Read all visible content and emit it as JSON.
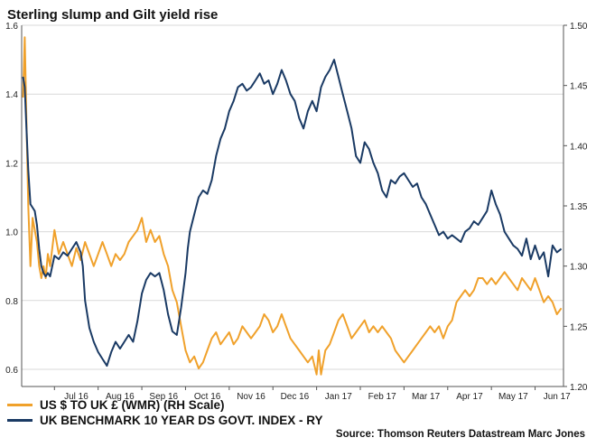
{
  "chart_data": {
    "type": "line",
    "title": "Sterling slump and Gilt yield rise",
    "x_ticks": [
      "Jul 16",
      "Aug 16",
      "Sep 16",
      "Oct 16",
      "Nov 16",
      "Dec 16",
      "Jan 17",
      "Feb 17",
      "Mar 17",
      "Apr 17",
      "May 17",
      "Jun 17"
    ],
    "y_left": {
      "ticks": [
        "0.6",
        "0.8",
        "1.0",
        "1.2",
        "1.4",
        "1.6"
      ],
      "range": [
        0.55,
        1.6
      ]
    },
    "y_right": {
      "ticks": [
        "1.20",
        "1.25",
        "1.30",
        "1.35",
        "1.40",
        "1.45",
        "1.50"
      ],
      "range": [
        1.2,
        1.5
      ]
    },
    "x_range_months": [
      -0.75,
      11.65
    ],
    "series": [
      {
        "name": "US $ TO UK £ (WMR) (RH Scale)",
        "axis": "right",
        "color": "#f0a12b",
        "points": [
          [
            -0.72,
            1.44
          ],
          [
            -0.68,
            1.49
          ],
          [
            -0.64,
            1.42
          ],
          [
            -0.6,
            1.35
          ],
          [
            -0.55,
            1.3
          ],
          [
            -0.5,
            1.34
          ],
          [
            -0.45,
            1.33
          ],
          [
            -0.4,
            1.32
          ],
          [
            -0.35,
            1.3
          ],
          [
            -0.3,
            1.29
          ],
          [
            -0.25,
            1.3
          ],
          [
            -0.2,
            1.29
          ],
          [
            -0.15,
            1.31
          ],
          [
            -0.1,
            1.3
          ],
          [
            0,
            1.33
          ],
          [
            0.1,
            1.31
          ],
          [
            0.2,
            1.32
          ],
          [
            0.3,
            1.31
          ],
          [
            0.4,
            1.3
          ],
          [
            0.5,
            1.315
          ],
          [
            0.6,
            1.305
          ],
          [
            0.7,
            1.32
          ],
          [
            0.8,
            1.31
          ],
          [
            0.9,
            1.3
          ],
          [
            1.0,
            1.31
          ],
          [
            1.1,
            1.32
          ],
          [
            1.2,
            1.31
          ],
          [
            1.3,
            1.3
          ],
          [
            1.4,
            1.31
          ],
          [
            1.5,
            1.305
          ],
          [
            1.6,
            1.31
          ],
          [
            1.7,
            1.32
          ],
          [
            1.8,
            1.325
          ],
          [
            1.9,
            1.33
          ],
          [
            2.0,
            1.34
          ],
          [
            2.1,
            1.32
          ],
          [
            2.2,
            1.33
          ],
          [
            2.3,
            1.32
          ],
          [
            2.4,
            1.325
          ],
          [
            2.5,
            1.31
          ],
          [
            2.6,
            1.3
          ],
          [
            2.7,
            1.28
          ],
          [
            2.8,
            1.27
          ],
          [
            2.9,
            1.25
          ],
          [
            3.0,
            1.23
          ],
          [
            3.1,
            1.22
          ],
          [
            3.2,
            1.225
          ],
          [
            3.3,
            1.215
          ],
          [
            3.4,
            1.22
          ],
          [
            3.5,
            1.23
          ],
          [
            3.6,
            1.24
          ],
          [
            3.7,
            1.245
          ],
          [
            3.8,
            1.235
          ],
          [
            3.9,
            1.24
          ],
          [
            4.0,
            1.245
          ],
          [
            4.1,
            1.235
          ],
          [
            4.2,
            1.24
          ],
          [
            4.3,
            1.25
          ],
          [
            4.4,
            1.245
          ],
          [
            4.5,
            1.24
          ],
          [
            4.6,
            1.245
          ],
          [
            4.7,
            1.25
          ],
          [
            4.8,
            1.26
          ],
          [
            4.9,
            1.255
          ],
          [
            5.0,
            1.245
          ],
          [
            5.1,
            1.25
          ],
          [
            5.2,
            1.26
          ],
          [
            5.3,
            1.25
          ],
          [
            5.4,
            1.24
          ],
          [
            5.5,
            1.235
          ],
          [
            5.6,
            1.23
          ],
          [
            5.7,
            1.225
          ],
          [
            5.8,
            1.22
          ],
          [
            5.9,
            1.225
          ],
          [
            6.0,
            1.21
          ],
          [
            6.05,
            1.23
          ],
          [
            6.1,
            1.21
          ],
          [
            6.2,
            1.23
          ],
          [
            6.3,
            1.235
          ],
          [
            6.4,
            1.245
          ],
          [
            6.5,
            1.255
          ],
          [
            6.6,
            1.26
          ],
          [
            6.7,
            1.25
          ],
          [
            6.8,
            1.24
          ],
          [
            6.9,
            1.245
          ],
          [
            7.0,
            1.25
          ],
          [
            7.1,
            1.255
          ],
          [
            7.2,
            1.245
          ],
          [
            7.3,
            1.25
          ],
          [
            7.4,
            1.245
          ],
          [
            7.5,
            1.25
          ],
          [
            7.6,
            1.245
          ],
          [
            7.7,
            1.24
          ],
          [
            7.8,
            1.23
          ],
          [
            7.9,
            1.225
          ],
          [
            8.0,
            1.22
          ],
          [
            8.1,
            1.225
          ],
          [
            8.2,
            1.23
          ],
          [
            8.3,
            1.235
          ],
          [
            8.4,
            1.24
          ],
          [
            8.5,
            1.245
          ],
          [
            8.6,
            1.25
          ],
          [
            8.7,
            1.245
          ],
          [
            8.8,
            1.25
          ],
          [
            8.9,
            1.24
          ],
          [
            9.0,
            1.25
          ],
          [
            9.1,
            1.255
          ],
          [
            9.2,
            1.27
          ],
          [
            9.3,
            1.275
          ],
          [
            9.4,
            1.28
          ],
          [
            9.5,
            1.275
          ],
          [
            9.6,
            1.28
          ],
          [
            9.7,
            1.29
          ],
          [
            9.8,
            1.29
          ],
          [
            9.9,
            1.285
          ],
          [
            10.0,
            1.29
          ],
          [
            10.1,
            1.285
          ],
          [
            10.2,
            1.29
          ],
          [
            10.3,
            1.295
          ],
          [
            10.4,
            1.29
          ],
          [
            10.5,
            1.285
          ],
          [
            10.6,
            1.28
          ],
          [
            10.7,
            1.29
          ],
          [
            10.8,
            1.285
          ],
          [
            10.9,
            1.28
          ],
          [
            11.0,
            1.29
          ],
          [
            11.1,
            1.28
          ],
          [
            11.2,
            1.27
          ],
          [
            11.3,
            1.275
          ],
          [
            11.4,
            1.27
          ],
          [
            11.5,
            1.26
          ],
          [
            11.6,
            1.265
          ]
        ]
      },
      {
        "name": "UK BENCHMARK 10 YEAR DS GOVT. INDEX - RY",
        "axis": "left",
        "color": "#1a3a64",
        "points": [
          [
            -0.72,
            1.45
          ],
          [
            -0.68,
            1.42
          ],
          [
            -0.64,
            1.3
          ],
          [
            -0.6,
            1.18
          ],
          [
            -0.55,
            1.08
          ],
          [
            -0.5,
            1.07
          ],
          [
            -0.45,
            1.06
          ],
          [
            -0.4,
            1.02
          ],
          [
            -0.35,
            0.95
          ],
          [
            -0.3,
            0.9
          ],
          [
            -0.25,
            0.88
          ],
          [
            -0.2,
            0.87
          ],
          [
            -0.15,
            0.88
          ],
          [
            -0.1,
            0.87
          ],
          [
            0,
            0.93
          ],
          [
            0.1,
            0.92
          ],
          [
            0.2,
            0.94
          ],
          [
            0.3,
            0.93
          ],
          [
            0.4,
            0.95
          ],
          [
            0.5,
            0.97
          ],
          [
            0.6,
            0.94
          ],
          [
            0.65,
            0.9
          ],
          [
            0.7,
            0.8
          ],
          [
            0.8,
            0.72
          ],
          [
            0.9,
            0.68
          ],
          [
            1.0,
            0.65
          ],
          [
            1.1,
            0.63
          ],
          [
            1.2,
            0.61
          ],
          [
            1.3,
            0.65
          ],
          [
            1.4,
            0.68
          ],
          [
            1.5,
            0.66
          ],
          [
            1.6,
            0.68
          ],
          [
            1.7,
            0.7
          ],
          [
            1.8,
            0.68
          ],
          [
            1.9,
            0.74
          ],
          [
            2.0,
            0.82
          ],
          [
            2.1,
            0.86
          ],
          [
            2.2,
            0.88
          ],
          [
            2.3,
            0.87
          ],
          [
            2.4,
            0.88
          ],
          [
            2.5,
            0.83
          ],
          [
            2.6,
            0.76
          ],
          [
            2.7,
            0.71
          ],
          [
            2.8,
            0.7
          ],
          [
            2.9,
            0.78
          ],
          [
            3.0,
            0.88
          ],
          [
            3.05,
            0.95
          ],
          [
            3.1,
            1.0
          ],
          [
            3.2,
            1.05
          ],
          [
            3.3,
            1.1
          ],
          [
            3.4,
            1.12
          ],
          [
            3.5,
            1.11
          ],
          [
            3.6,
            1.15
          ],
          [
            3.7,
            1.22
          ],
          [
            3.8,
            1.27
          ],
          [
            3.9,
            1.3
          ],
          [
            4.0,
            1.35
          ],
          [
            4.1,
            1.38
          ],
          [
            4.2,
            1.42
          ],
          [
            4.3,
            1.43
          ],
          [
            4.4,
            1.41
          ],
          [
            4.5,
            1.42
          ],
          [
            4.6,
            1.44
          ],
          [
            4.7,
            1.46
          ],
          [
            4.8,
            1.43
          ],
          [
            4.9,
            1.44
          ],
          [
            5.0,
            1.4
          ],
          [
            5.1,
            1.43
          ],
          [
            5.2,
            1.47
          ],
          [
            5.3,
            1.44
          ],
          [
            5.4,
            1.4
          ],
          [
            5.5,
            1.38
          ],
          [
            5.6,
            1.33
          ],
          [
            5.7,
            1.3
          ],
          [
            5.8,
            1.35
          ],
          [
            5.9,
            1.38
          ],
          [
            6.0,
            1.35
          ],
          [
            6.1,
            1.42
          ],
          [
            6.2,
            1.45
          ],
          [
            6.3,
            1.47
          ],
          [
            6.4,
            1.5
          ],
          [
            6.5,
            1.45
          ],
          [
            6.6,
            1.4
          ],
          [
            6.7,
            1.35
          ],
          [
            6.8,
            1.3
          ],
          [
            6.9,
            1.22
          ],
          [
            7.0,
            1.2
          ],
          [
            7.1,
            1.26
          ],
          [
            7.2,
            1.24
          ],
          [
            7.3,
            1.2
          ],
          [
            7.4,
            1.17
          ],
          [
            7.5,
            1.12
          ],
          [
            7.6,
            1.1
          ],
          [
            7.7,
            1.15
          ],
          [
            7.8,
            1.14
          ],
          [
            7.9,
            1.16
          ],
          [
            8.0,
            1.17
          ],
          [
            8.1,
            1.15
          ],
          [
            8.2,
            1.13
          ],
          [
            8.3,
            1.14
          ],
          [
            8.4,
            1.1
          ],
          [
            8.5,
            1.08
          ],
          [
            8.6,
            1.05
          ],
          [
            8.7,
            1.02
          ],
          [
            8.8,
            0.99
          ],
          [
            8.9,
            1.0
          ],
          [
            9.0,
            0.98
          ],
          [
            9.1,
            0.99
          ],
          [
            9.2,
            0.98
          ],
          [
            9.3,
            0.97
          ],
          [
            9.4,
            1.0
          ],
          [
            9.5,
            1.01
          ],
          [
            9.6,
            1.03
          ],
          [
            9.7,
            1.02
          ],
          [
            9.8,
            1.04
          ],
          [
            9.9,
            1.06
          ],
          [
            10.0,
            1.12
          ],
          [
            10.1,
            1.08
          ],
          [
            10.2,
            1.05
          ],
          [
            10.3,
            1.0
          ],
          [
            10.4,
            0.98
          ],
          [
            10.5,
            0.96
          ],
          [
            10.6,
            0.95
          ],
          [
            10.7,
            0.93
          ],
          [
            10.8,
            0.98
          ],
          [
            10.9,
            0.92
          ],
          [
            11.0,
            0.96
          ],
          [
            11.1,
            0.92
          ],
          [
            11.2,
            0.94
          ],
          [
            11.3,
            0.87
          ],
          [
            11.4,
            0.96
          ],
          [
            11.5,
            0.94
          ],
          [
            11.6,
            0.95
          ]
        ]
      }
    ],
    "source": "Source: Thomson Reuters Datastream Marc Jones",
    "grid": true,
    "legend_position": "bottom-left"
  }
}
